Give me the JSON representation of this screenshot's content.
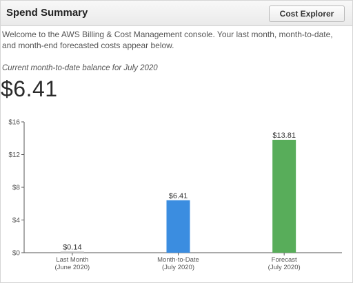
{
  "header": {
    "title": "Spend Summary",
    "button_label": "Cost Explorer"
  },
  "intro_text": "Welcome to the AWS Billing & Cost Management console. Your last month, month-to-date, and month-end forecasted costs appear below.",
  "balance": {
    "label": "Current month-to-date balance for July 2020",
    "value": "$6.41"
  },
  "chart_data": {
    "type": "bar",
    "categories": [
      {
        "line1": "Last Month",
        "line2": "(June 2020)"
      },
      {
        "line1": "Month-to-Date",
        "line2": "(July 2020)"
      },
      {
        "line1": "Forecast",
        "line2": "(July 2020)"
      }
    ],
    "values": [
      0.14,
      6.41,
      13.81
    ],
    "value_labels": [
      "$0.14",
      "$6.41",
      "$13.81"
    ],
    "colors": [
      "#c0c0c0",
      "#3b8de0",
      "#58ad5a"
    ],
    "ylim": [
      0,
      16
    ],
    "yticks": [
      0,
      4,
      8,
      12,
      16
    ],
    "ytick_labels": [
      "$0",
      "$4",
      "$8",
      "$12",
      "$16"
    ],
    "grid": false,
    "title": "",
    "xlabel": "",
    "ylabel": ""
  }
}
